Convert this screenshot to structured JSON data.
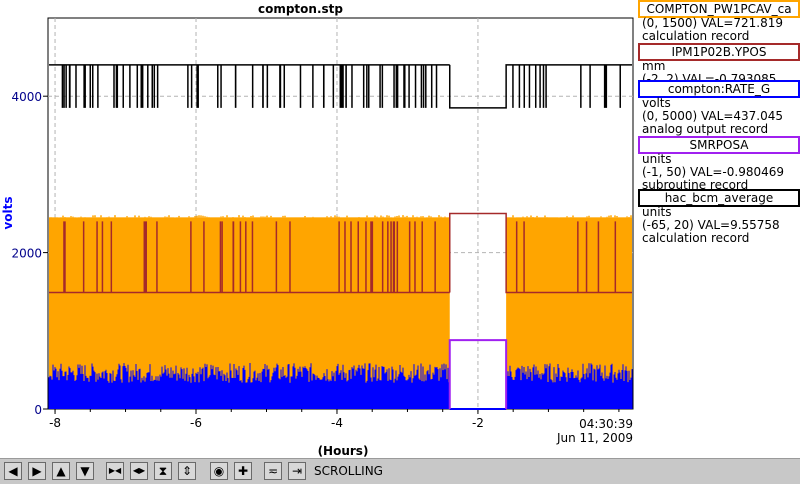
{
  "chart_data": {
    "type": "line",
    "title": "compton.stp",
    "xlabel": "(Hours)",
    "ylabel": "volts",
    "xlim": [
      -8.1,
      0.2
    ],
    "ylim": [
      0,
      5000
    ],
    "x_ticks": [
      -8,
      -6,
      -4,
      -2
    ],
    "x_tick_labels": [
      "-8",
      "-6",
      "-4",
      "-2"
    ],
    "y_ticks": [
      0,
      2000,
      4000
    ],
    "y_tick_labels": [
      "0",
      "2000",
      "4000"
    ],
    "end_time": "04:30:39",
    "end_date": "Jun 11, 2009",
    "grid": true,
    "series": [
      {
        "name": "COMPTON_PW1PCAV_ca",
        "color": "#ffa500",
        "range": [
          0,
          1500
        ],
        "val": "721.819",
        "desc": "calculation record",
        "units": "",
        "approx_band_volts": [
          20,
          2450
        ],
        "gap_hours": [
          -2.4,
          -1.6
        ]
      },
      {
        "name": "IPM1P02B.YPOS",
        "color": "#a52a2a",
        "range": [
          -2,
          2
        ],
        "val": "-0.793085",
        "desc": "",
        "units": "mm",
        "approx_level_volts": 1490,
        "gap_level_volts": 2500,
        "gap_hours": [
          -2.4,
          -1.6
        ]
      },
      {
        "name": "compton:RATE_G",
        "color": "#0000ff",
        "range": [
          0,
          5000
        ],
        "val": "437.045",
        "desc": "analog output record",
        "units": "volts",
        "approx_band_volts": [
          0,
          560
        ],
        "gap_hours": [
          -2.4,
          -1.6
        ]
      },
      {
        "name": "SMRPOSA",
        "color": "#a020f0",
        "range": [
          -1,
          50
        ],
        "val": "-0.980469",
        "desc": "subroutine record",
        "units": "units",
        "approx_level_volts": 0,
        "gap_level_volts": 880,
        "gap_hours": [
          -2.4,
          -1.6
        ]
      },
      {
        "name": "hac_bcm_average",
        "color": "#000000",
        "range": [
          -65,
          20
        ],
        "val": "9.55758",
        "desc": "calculation record",
        "units": "units",
        "approx_level_volts": 4400,
        "dip_volts": 3850,
        "gap_level_volts": 3850,
        "gap_hours": [
          -2.4,
          -1.6
        ]
      }
    ]
  },
  "legend": [
    {
      "name": "COMPTON_PW1PCAV_ca",
      "color": "#ffa500",
      "line1": "(0, 1500) VAL=721.819",
      "line2": "calculation record"
    },
    {
      "name": "IPM1P02B.YPOS",
      "color": "#a52a2a",
      "line1": "mm",
      "line2": "(-2, 2) VAL=-0.793085"
    },
    {
      "name": "compton:RATE_G",
      "color": "#0000ff",
      "line1": "volts",
      "line2": "(0, 5000) VAL=437.045",
      "line3": "analog output record"
    },
    {
      "name": "SMRPOSA",
      "color": "#a020f0",
      "line1": "units",
      "line2": "(-1, 50) VAL=-0.980469",
      "line3": "subroutine record"
    },
    {
      "name": "hac_bcm_average",
      "color": "#000000",
      "line1": "units",
      "line2": "(-65, 20) VAL=9.55758",
      "line3": "calculation record"
    }
  ],
  "toolbar": {
    "status": "SCROLLING",
    "icons": [
      "arrow-left-icon",
      "arrow-right-icon",
      "arrow-up-icon",
      "arrow-down-icon",
      "zoom-in-horizontal-icon",
      "zoom-out-horizontal-icon",
      "zoom-in-vertical-icon",
      "zoom-out-vertical-icon",
      "autoscale-icon",
      "add-icon",
      "config-icon",
      "pan-right-icon"
    ],
    "glyphs": [
      "◀",
      "▶",
      "▲",
      "▼",
      "▶◀",
      "◀▶",
      "⧗",
      "⇕",
      "◉",
      "✚",
      "≂",
      "⇥"
    ]
  }
}
